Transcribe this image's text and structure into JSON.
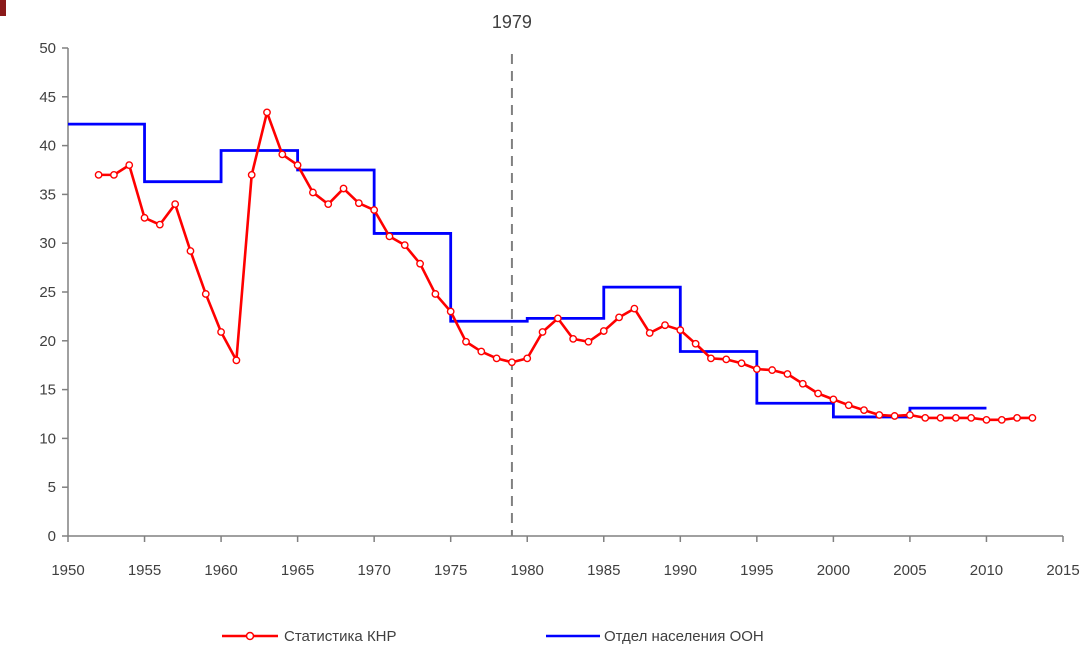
{
  "chart_data": {
    "type": "line",
    "title": "",
    "xlabel": "",
    "ylabel": "",
    "xlim": [
      1950,
      2015
    ],
    "ylim": [
      0,
      50
    ],
    "x_ticks": [
      "1950",
      "1955",
      "1960",
      "1965",
      "1970",
      "1975",
      "1980",
      "1985",
      "1990",
      "1995",
      "2000",
      "2005",
      "2010",
      "2015"
    ],
    "y_ticks": [
      "0",
      "5",
      "10",
      "15",
      "20",
      "25",
      "30",
      "35",
      "40",
      "45",
      "50"
    ],
    "grid": false,
    "legend_position": "bottom",
    "annotation": {
      "label": "1979",
      "x": 1979
    },
    "series": [
      {
        "name": "Статистика КНР",
        "color": "#ff0000",
        "style": "line-with-circle-markers",
        "points": [
          [
            1952,
            37.0
          ],
          [
            1953,
            37.0
          ],
          [
            1954,
            38.0
          ],
          [
            1955,
            32.6
          ],
          [
            1956,
            31.9
          ],
          [
            1957,
            34.0
          ],
          [
            1958,
            29.2
          ],
          [
            1959,
            24.8
          ],
          [
            1960,
            20.9
          ],
          [
            1961,
            18.0
          ],
          [
            1962,
            37.0
          ],
          [
            1963,
            43.4
          ],
          [
            1964,
            39.1
          ],
          [
            1965,
            38.0
          ],
          [
            1966,
            35.2
          ],
          [
            1967,
            34.0
          ],
          [
            1968,
            35.6
          ],
          [
            1969,
            34.1
          ],
          [
            1970,
            33.4
          ],
          [
            1971,
            30.7
          ],
          [
            1972,
            29.8
          ],
          [
            1973,
            27.9
          ],
          [
            1974,
            24.8
          ],
          [
            1975,
            23.0
          ],
          [
            1976,
            19.9
          ],
          [
            1977,
            18.9
          ],
          [
            1978,
            18.2
          ],
          [
            1979,
            17.8
          ],
          [
            1980,
            18.2
          ],
          [
            1981,
            20.9
          ],
          [
            1982,
            22.3
          ],
          [
            1983,
            20.2
          ],
          [
            1984,
            19.9
          ],
          [
            1985,
            21.0
          ],
          [
            1986,
            22.4
          ],
          [
            1987,
            23.3
          ],
          [
            1988,
            20.8
          ],
          [
            1989,
            21.6
          ],
          [
            1990,
            21.1
          ],
          [
            1991,
            19.7
          ],
          [
            1992,
            18.2
          ],
          [
            1993,
            18.1
          ],
          [
            1994,
            17.7
          ],
          [
            1995,
            17.1
          ],
          [
            1996,
            17.0
          ],
          [
            1997,
            16.6
          ],
          [
            1998,
            15.6
          ],
          [
            1999,
            14.6
          ],
          [
            2000,
            14.0
          ],
          [
            2001,
            13.4
          ],
          [
            2002,
            12.9
          ],
          [
            2003,
            12.4
          ],
          [
            2004,
            12.3
          ],
          [
            2005,
            12.4
          ],
          [
            2006,
            12.1
          ],
          [
            2007,
            12.1
          ],
          [
            2008,
            12.1
          ],
          [
            2009,
            12.1
          ],
          [
            2010,
            11.9
          ],
          [
            2011,
            11.9
          ],
          [
            2012,
            12.1
          ],
          [
            2013,
            12.1
          ]
        ]
      },
      {
        "name": "Отдел населения ООН",
        "color": "#0000ff",
        "style": "step",
        "steps": [
          {
            "x0": 1950,
            "x1": 1955,
            "value": 42.2
          },
          {
            "x0": 1955,
            "x1": 1960,
            "value": 36.3
          },
          {
            "x0": 1960,
            "x1": 1965,
            "value": 39.5
          },
          {
            "x0": 1965,
            "x1": 1970,
            "value": 37.5
          },
          {
            "x0": 1970,
            "x1": 1975,
            "value": 31.0
          },
          {
            "x0": 1975,
            "x1": 1980,
            "value": 22.0
          },
          {
            "x0": 1980,
            "x1": 1985,
            "value": 22.3
          },
          {
            "x0": 1985,
            "x1": 1990,
            "value": 25.5
          },
          {
            "x0": 1990,
            "x1": 1995,
            "value": 18.9
          },
          {
            "x0": 1995,
            "x1": 2000,
            "value": 13.6
          },
          {
            "x0": 2000,
            "x1": 2005,
            "value": 12.2
          },
          {
            "x0": 2005,
            "x1": 2010,
            "value": 13.1
          }
        ]
      }
    ]
  }
}
